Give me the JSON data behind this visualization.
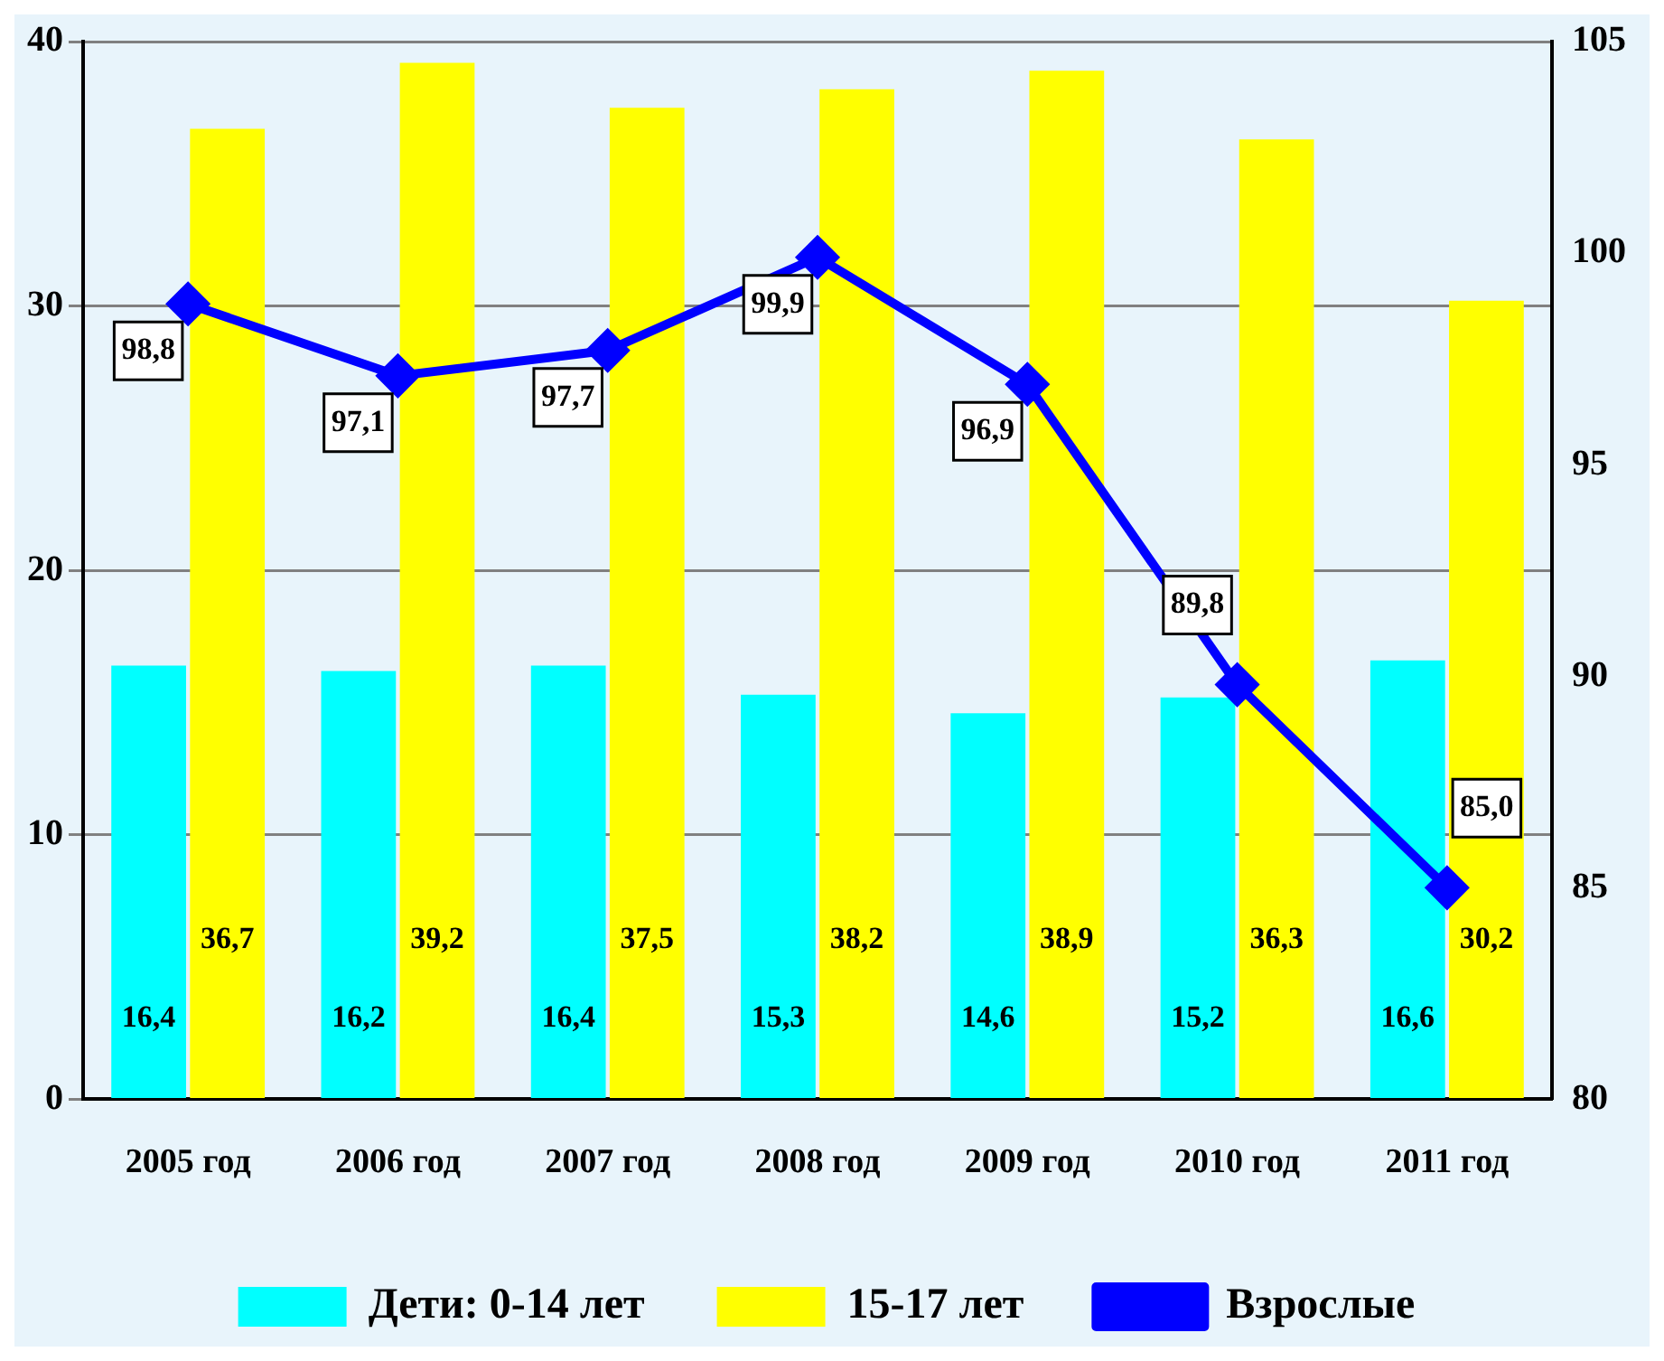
{
  "chart_data": {
    "type": "bar",
    "categories": [
      "2005 год",
      "2006 год",
      "2007 год",
      "2008 год",
      "2009 год",
      "2010 год",
      "2011 год"
    ],
    "series": [
      {
        "name": "Дети: 0-14 лет",
        "color": "#00ffff",
        "values": [
          16.4,
          16.2,
          16.4,
          15.3,
          14.6,
          15.2,
          16.6
        ],
        "value_labels": [
          "16,4",
          "16,2",
          "16,4",
          "15,3",
          "14,6",
          "15,2",
          "16,6"
        ]
      },
      {
        "name": "15-17 лет",
        "color": "#ffff00",
        "values": [
          36.7,
          39.2,
          37.5,
          38.2,
          38.9,
          36.3,
          30.2
        ],
        "value_labels": [
          "36,7",
          "39,2",
          "37,5",
          "38,2",
          "38,9",
          "36,3",
          "30,2"
        ]
      },
      {
        "name": "Взрослые",
        "type": "line",
        "axis": "y2",
        "color": "#0000ff",
        "marker": "diamond",
        "values": [
          98.8,
          97.1,
          97.7,
          99.9,
          96.9,
          89.8,
          85.0
        ],
        "value_labels": [
          "98,8",
          "97,1",
          "97,7",
          "99,9",
          "96,9",
          "89,8",
          "85,0"
        ]
      }
    ],
    "ylim": [
      0,
      40
    ],
    "yticks": [
      0,
      10,
      20,
      30,
      40
    ],
    "y2lim": [
      80,
      105
    ],
    "y2ticks": [
      80,
      85,
      90,
      95,
      100,
      105
    ],
    "grid": "y",
    "legend": "bottom"
  }
}
